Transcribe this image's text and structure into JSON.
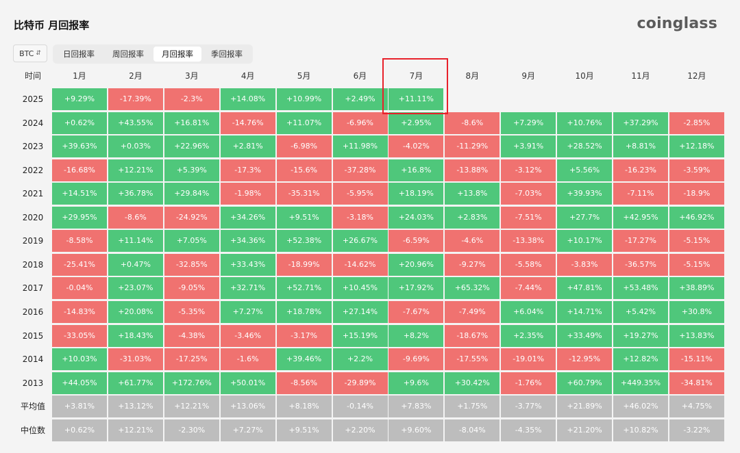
{
  "title": "比特币 月回报率",
  "brand": "coinglass",
  "coin_select": {
    "value": "BTC",
    "icon": "chevron-updown-icon"
  },
  "tabs": [
    {
      "label": "日回报率",
      "active": false
    },
    {
      "label": "周回报率",
      "active": false
    },
    {
      "label": "月回报率",
      "active": true
    },
    {
      "label": "季回报率",
      "active": false
    }
  ],
  "colors": {
    "positive": "#4fc77b",
    "negative": "#f07270",
    "stat": "#bdbdbd",
    "highlight": "#e8202a"
  },
  "table": {
    "corner_label": "时间",
    "months": [
      "1月",
      "2月",
      "3月",
      "4月",
      "5月",
      "6月",
      "7月",
      "8月",
      "9月",
      "10月",
      "11月",
      "12月"
    ],
    "rows": [
      {
        "label": "2025",
        "values": [
          "+9.29%",
          "-17.39%",
          "-2.3%",
          "+14.08%",
          "+10.99%",
          "+2.49%",
          "+11.11%",
          "",
          "",
          "",
          "",
          ""
        ]
      },
      {
        "label": "2024",
        "values": [
          "+0.62%",
          "+43.55%",
          "+16.81%",
          "-14.76%",
          "+11.07%",
          "-6.96%",
          "+2.95%",
          "-8.6%",
          "+7.29%",
          "+10.76%",
          "+37.29%",
          "-2.85%"
        ]
      },
      {
        "label": "2023",
        "values": [
          "+39.63%",
          "+0.03%",
          "+22.96%",
          "+2.81%",
          "-6.98%",
          "+11.98%",
          "-4.02%",
          "-11.29%",
          "+3.91%",
          "+28.52%",
          "+8.81%",
          "+12.18%"
        ]
      },
      {
        "label": "2022",
        "values": [
          "-16.68%",
          "+12.21%",
          "+5.39%",
          "-17.3%",
          "-15.6%",
          "-37.28%",
          "+16.8%",
          "-13.88%",
          "-3.12%",
          "+5.56%",
          "-16.23%",
          "-3.59%"
        ]
      },
      {
        "label": "2021",
        "values": [
          "+14.51%",
          "+36.78%",
          "+29.84%",
          "-1.98%",
          "-35.31%",
          "-5.95%",
          "+18.19%",
          "+13.8%",
          "-7.03%",
          "+39.93%",
          "-7.11%",
          "-18.9%"
        ]
      },
      {
        "label": "2020",
        "values": [
          "+29.95%",
          "-8.6%",
          "-24.92%",
          "+34.26%",
          "+9.51%",
          "-3.18%",
          "+24.03%",
          "+2.83%",
          "-7.51%",
          "+27.7%",
          "+42.95%",
          "+46.92%"
        ]
      },
      {
        "label": "2019",
        "values": [
          "-8.58%",
          "+11.14%",
          "+7.05%",
          "+34.36%",
          "+52.38%",
          "+26.67%",
          "-6.59%",
          "-4.6%",
          "-13.38%",
          "+10.17%",
          "-17.27%",
          "-5.15%"
        ]
      },
      {
        "label": "2018",
        "values": [
          "-25.41%",
          "+0.47%",
          "-32.85%",
          "+33.43%",
          "-18.99%",
          "-14.62%",
          "+20.96%",
          "-9.27%",
          "-5.58%",
          "-3.83%",
          "-36.57%",
          "-5.15%"
        ]
      },
      {
        "label": "2017",
        "values": [
          "-0.04%",
          "+23.07%",
          "-9.05%",
          "+32.71%",
          "+52.71%",
          "+10.45%",
          "+17.92%",
          "+65.32%",
          "-7.44%",
          "+47.81%",
          "+53.48%",
          "+38.89%"
        ]
      },
      {
        "label": "2016",
        "values": [
          "-14.83%",
          "+20.08%",
          "-5.35%",
          "+7.27%",
          "+18.78%",
          "+27.14%",
          "-7.67%",
          "-7.49%",
          "+6.04%",
          "+14.71%",
          "+5.42%",
          "+30.8%"
        ]
      },
      {
        "label": "2015",
        "values": [
          "-33.05%",
          "+18.43%",
          "-4.38%",
          "-3.46%",
          "-3.17%",
          "+15.19%",
          "+8.2%",
          "-18.67%",
          "+2.35%",
          "+33.49%",
          "+19.27%",
          "+13.83%"
        ]
      },
      {
        "label": "2014",
        "values": [
          "+10.03%",
          "-31.03%",
          "-17.25%",
          "-1.6%",
          "+39.46%",
          "+2.2%",
          "-9.69%",
          "-17.55%",
          "-19.01%",
          "-12.95%",
          "+12.82%",
          "-15.11%"
        ]
      },
      {
        "label": "2013",
        "values": [
          "+44.05%",
          "+61.77%",
          "+172.76%",
          "+50.01%",
          "-8.56%",
          "-29.89%",
          "+9.6%",
          "+30.42%",
          "-1.76%",
          "+60.79%",
          "+449.35%",
          "-34.81%"
        ]
      }
    ],
    "stats": [
      {
        "label": "平均值",
        "values": [
          "+3.81%",
          "+13.12%",
          "+12.21%",
          "+13.06%",
          "+8.18%",
          "-0.14%",
          "+7.83%",
          "+1.75%",
          "-3.77%",
          "+21.89%",
          "+46.02%",
          "+4.75%"
        ]
      },
      {
        "label": "中位数",
        "values": [
          "+0.62%",
          "+12.21%",
          "-2.30%",
          "+7.27%",
          "+9.51%",
          "+2.20%",
          "+9.60%",
          "-8.04%",
          "-4.35%",
          "+21.20%",
          "+10.82%",
          "-3.22%"
        ]
      }
    ]
  }
}
